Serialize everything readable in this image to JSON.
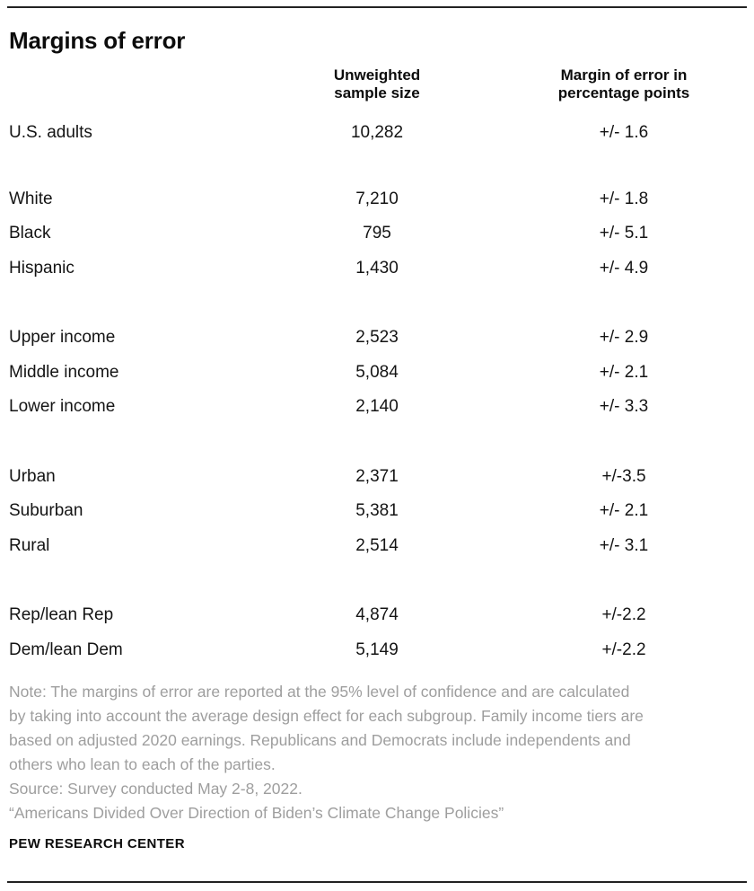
{
  "title": "Margins of error",
  "columns": {
    "sample_line1": "Unweighted",
    "sample_line2": "sample size",
    "margin_line1": "Margin of error in",
    "margin_line2": "percentage points"
  },
  "chart_data": {
    "type": "table",
    "title": "Margins of error",
    "column_headers": [
      "",
      "Unweighted sample size",
      "Margin of error in percentage points"
    ],
    "group_breaks_after_row_index": [
      0,
      3,
      6,
      9
    ],
    "rows": [
      [
        "U.S. adults",
        "10,282",
        "+/- 1.6"
      ],
      [
        "White",
        "7,210",
        "+/- 1.8"
      ],
      [
        "Black",
        "795",
        "+/- 5.1"
      ],
      [
        "Hispanic",
        "1,430",
        "+/- 4.9"
      ],
      [
        "Upper income",
        "2,523",
        "+/- 2.9"
      ],
      [
        "Middle income",
        "5,084",
        "+/- 2.1"
      ],
      [
        "Lower income",
        "2,140",
        "+/- 3.3"
      ],
      [
        "Urban",
        "2,371",
        "+/-3.5"
      ],
      [
        "Suburban",
        "5,381",
        "+/- 2.1"
      ],
      [
        "Rural",
        "2,514",
        "+/- 3.1"
      ],
      [
        "Rep/lean Rep",
        "4,874",
        "+/-2.2"
      ],
      [
        "Dem/lean Dem",
        "5,149",
        "+/-2.2"
      ]
    ]
  },
  "footer": {
    "note_lines": [
      "Note: The margins of error are reported at the 95% level of confidence and are calculated",
      "by taking into account the average design effect for each subgroup. Family income tiers are",
      "based on adjusted 2020 earnings. Republicans and Democrats include independents and",
      "others who lean to each of the parties."
    ],
    "source": "Source: Survey conducted May 2-8, 2022.",
    "citation": "“Americans Divided Over Direction of Biden’s Climate Change Policies”",
    "brand": "PEW RESEARCH CENTER"
  },
  "colors": {
    "text": "#141414",
    "muted": "#9e9e9e",
    "rule": "#222222",
    "background": "#ffffff"
  }
}
